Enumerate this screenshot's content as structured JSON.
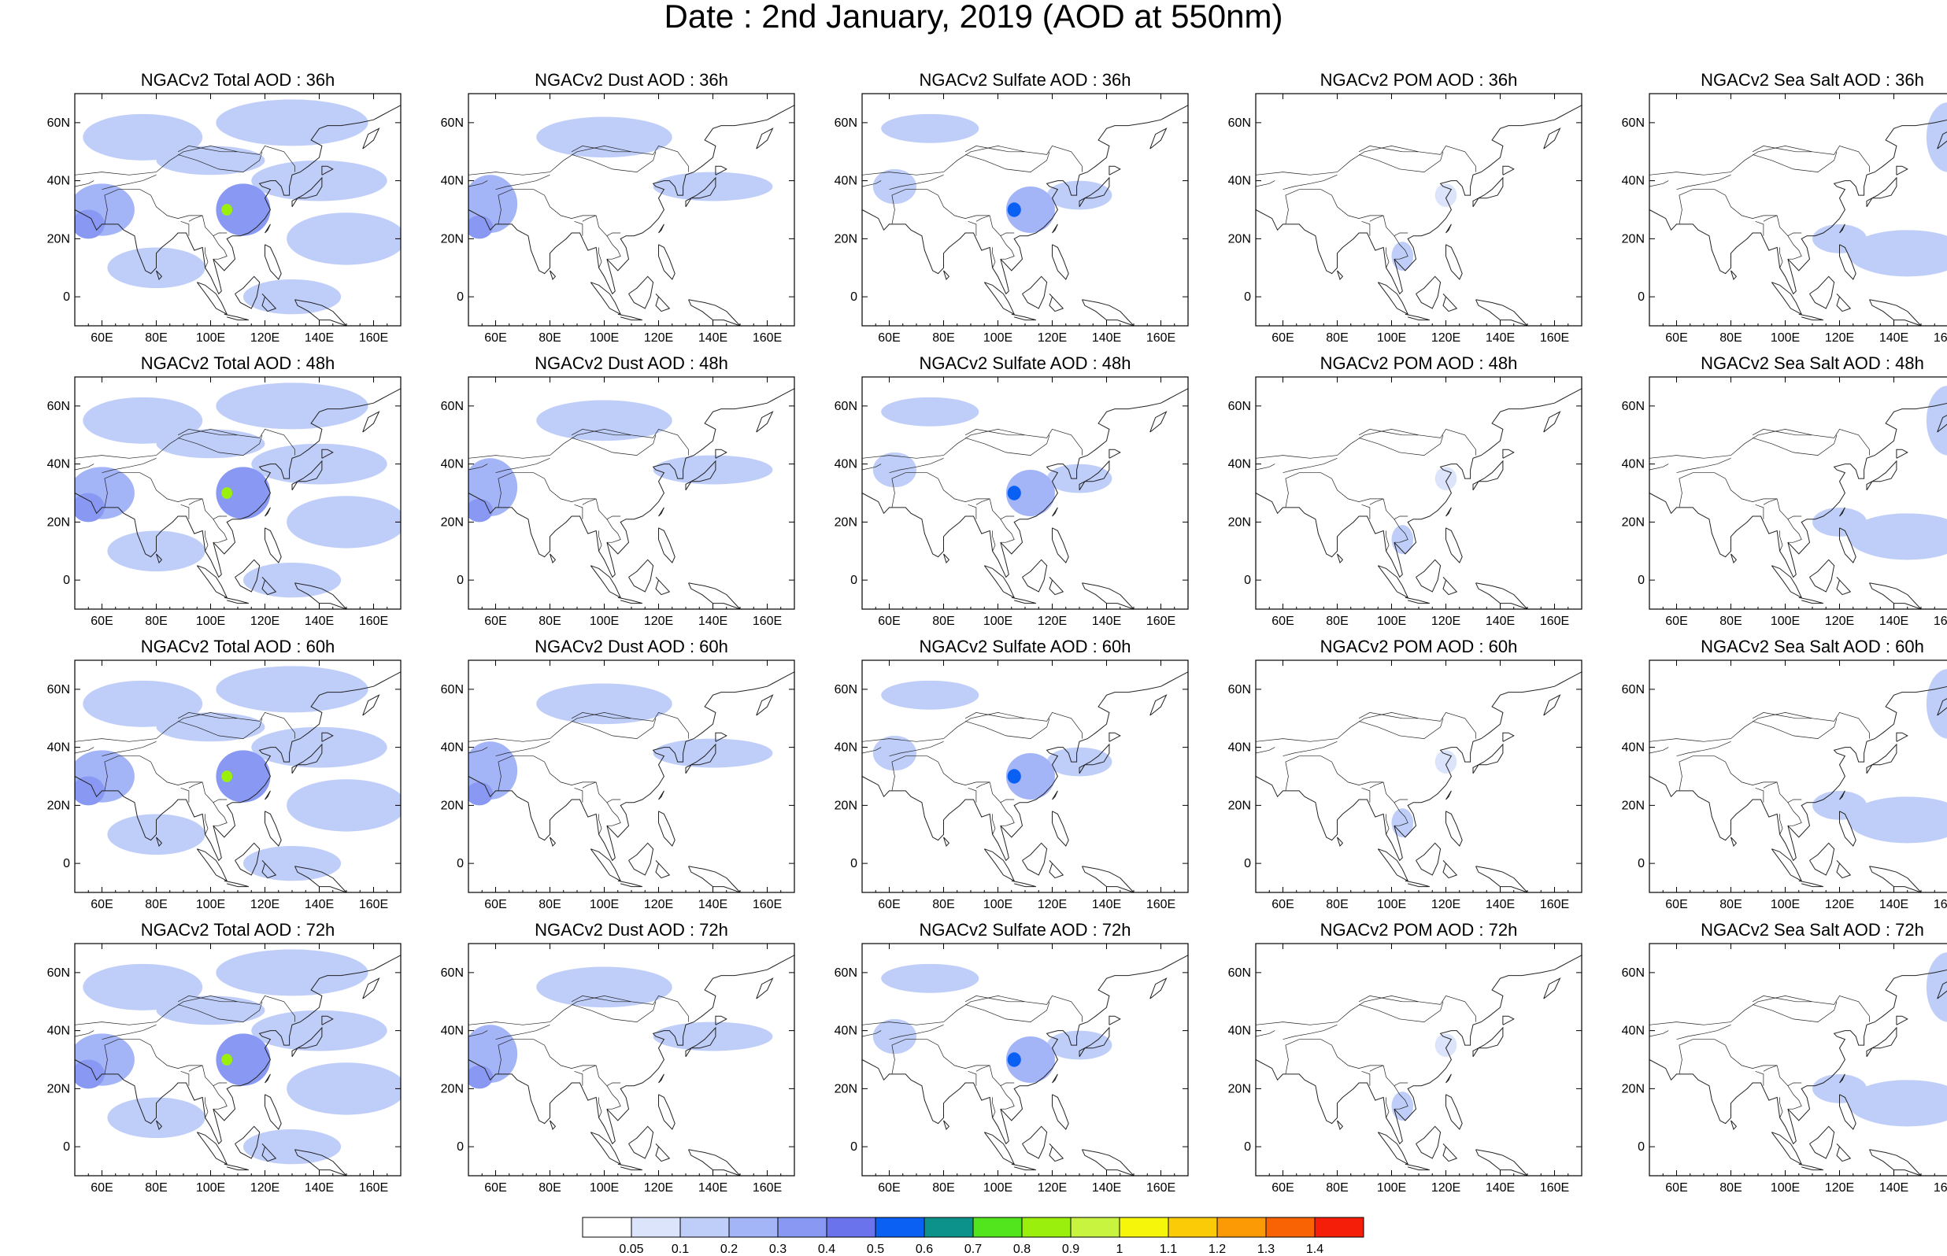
{
  "title": "Date : 2nd January, 2019 (AOD at 550nm)",
  "map": {
    "lon_range": [
      50,
      170
    ],
    "lat_range": [
      -10,
      70
    ],
    "lon_ticks": [
      60,
      80,
      100,
      120,
      140,
      160
    ],
    "lat_ticks": [
      0,
      20,
      40,
      60
    ],
    "lon_tick_labels": [
      "60E",
      "80E",
      "100E",
      "120E",
      "140E",
      "160E"
    ],
    "lat_tick_labels": [
      "0",
      "20N",
      "40N",
      "60N"
    ]
  },
  "panels": [
    {
      "title": "NGACv2 Total AOD : 36h",
      "species": "total",
      "hour": 36
    },
    {
      "title": "NGACv2 Dust AOD : 36h",
      "species": "dust",
      "hour": 36
    },
    {
      "title": "NGACv2 Sulfate AOD : 36h",
      "species": "sulfate",
      "hour": 36
    },
    {
      "title": "NGACv2 POM AOD : 36h",
      "species": "pom",
      "hour": 36
    },
    {
      "title": "NGACv2 Sea Salt AOD : 36h",
      "species": "seasalt",
      "hour": 36
    },
    {
      "title": "NGACv2 Total AOD : 48h",
      "species": "total",
      "hour": 48
    },
    {
      "title": "NGACv2 Dust AOD : 48h",
      "species": "dust",
      "hour": 48
    },
    {
      "title": "NGACv2 Sulfate AOD : 48h",
      "species": "sulfate",
      "hour": 48
    },
    {
      "title": "NGACv2 POM AOD : 48h",
      "species": "pom",
      "hour": 48
    },
    {
      "title": "NGACv2 Sea Salt AOD : 48h",
      "species": "seasalt",
      "hour": 48
    },
    {
      "title": "NGACv2 Total AOD : 60h",
      "species": "total",
      "hour": 60
    },
    {
      "title": "NGACv2 Dust AOD : 60h",
      "species": "dust",
      "hour": 60
    },
    {
      "title": "NGACv2 Sulfate AOD : 60h",
      "species": "sulfate",
      "hour": 60
    },
    {
      "title": "NGACv2 POM AOD : 60h",
      "species": "pom",
      "hour": 60
    },
    {
      "title": "NGACv2 Sea Salt AOD : 60h",
      "species": "seasalt",
      "hour": 60
    },
    {
      "title": "NGACv2 Total AOD : 72h",
      "species": "total",
      "hour": 72
    },
    {
      "title": "NGACv2 Dust AOD : 72h",
      "species": "dust",
      "hour": 72
    },
    {
      "title": "NGACv2 Sulfate AOD : 72h",
      "species": "sulfate",
      "hour": 72
    },
    {
      "title": "NGACv2 POM AOD : 72h",
      "species": "pom",
      "hour": 72
    },
    {
      "title": "NGACv2 Sea Salt  AOD : 72h",
      "species": "seasalt",
      "hour": 72
    }
  ],
  "colorbar": {
    "labels": [
      "0.05",
      "0.1",
      "0.2",
      "0.3",
      "0.4",
      "0.5",
      "0.6",
      "0.7",
      "0.8",
      "0.9",
      "1",
      "1.1",
      "1.2",
      "1.3",
      "1.4"
    ],
    "colors": [
      "#ffffff",
      "#dbe4fb",
      "#bfcdf9",
      "#a3b4f7",
      "#8898f3",
      "#6a72ec",
      "#0a60f2",
      "#0c928a",
      "#52e41c",
      "#9af00c",
      "#c8f440",
      "#f6f60a",
      "#fccb08",
      "#fb9a05",
      "#f96304",
      "#f51e08"
    ]
  },
  "aod_fields": {
    "total": [
      {
        "lon": 60,
        "lat": 30,
        "rx": 12,
        "ry": 9,
        "v": 0.25
      },
      {
        "lon": 55,
        "lat": 25,
        "rx": 6,
        "ry": 5,
        "v": 0.35
      },
      {
        "lon": 75,
        "lat": 55,
        "rx": 22,
        "ry": 8,
        "v": 0.12
      },
      {
        "lon": 130,
        "lat": 60,
        "rx": 28,
        "ry": 8,
        "v": 0.12
      },
      {
        "lon": 100,
        "lat": 47,
        "rx": 20,
        "ry": 5,
        "v": 0.1
      },
      {
        "lon": 112,
        "lat": 30,
        "rx": 10,
        "ry": 9,
        "v": 0.32
      },
      {
        "lon": 106,
        "lat": 30,
        "rx": 2,
        "ry": 2,
        "v": 0.8
      },
      {
        "lon": 140,
        "lat": 40,
        "rx": 25,
        "ry": 7,
        "v": 0.15
      },
      {
        "lon": 150,
        "lat": 20,
        "rx": 22,
        "ry": 9,
        "v": 0.14
      },
      {
        "lon": 80,
        "lat": 10,
        "rx": 18,
        "ry": 7,
        "v": 0.1
      },
      {
        "lon": 130,
        "lat": 0,
        "rx": 18,
        "ry": 6,
        "v": 0.12
      }
    ],
    "dust": [
      {
        "lon": 58,
        "lat": 32,
        "rx": 10,
        "ry": 10,
        "v": 0.2
      },
      {
        "lon": 54,
        "lat": 24,
        "rx": 5,
        "ry": 4,
        "v": 0.32
      },
      {
        "lon": 100,
        "lat": 55,
        "rx": 25,
        "ry": 7,
        "v": 0.1
      },
      {
        "lon": 140,
        "lat": 38,
        "rx": 22,
        "ry": 5,
        "v": 0.1
      }
    ],
    "sulfate": [
      {
        "lon": 112,
        "lat": 30,
        "rx": 9,
        "ry": 8,
        "v": 0.25
      },
      {
        "lon": 106,
        "lat": 30,
        "rx": 2.5,
        "ry": 2.5,
        "v": 0.5
      },
      {
        "lon": 75,
        "lat": 58,
        "rx": 18,
        "ry": 5,
        "v": 0.1
      },
      {
        "lon": 130,
        "lat": 35,
        "rx": 12,
        "ry": 5,
        "v": 0.1
      },
      {
        "lon": 62,
        "lat": 38,
        "rx": 8,
        "ry": 6,
        "v": 0.1
      }
    ],
    "pom": [
      {
        "lon": 104,
        "lat": 14,
        "rx": 4,
        "ry": 5,
        "v": 0.15
      },
      {
        "lon": 120,
        "lat": 35,
        "rx": 4,
        "ry": 4,
        "v": 0.08
      }
    ],
    "seasalt": [
      {
        "lon": 145,
        "lat": 15,
        "rx": 22,
        "ry": 8,
        "v": 0.13
      },
      {
        "lon": 160,
        "lat": 55,
        "rx": 8,
        "ry": 12,
        "v": 0.1
      },
      {
        "lon": 120,
        "lat": 20,
        "rx": 10,
        "ry": 5,
        "v": 0.1
      }
    ]
  }
}
